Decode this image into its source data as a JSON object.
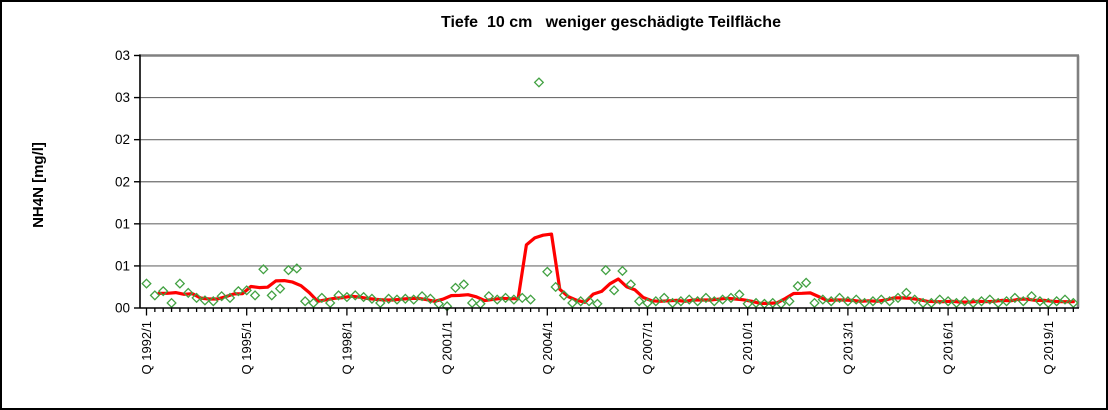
{
  "window": {
    "background_color": "#FFFFFF",
    "border_color": "#000000"
  },
  "chart_data": {
    "type": "scatter",
    "title": "Tiefe  10 cm   weniger geschädigte Teilfläche",
    "ylabel": "NH4N [mg/l]",
    "xlabel": "",
    "ylim": [
      0,
      0.3
    ],
    "grid": "horizontal",
    "legend": "none",
    "y_ticks": [
      {
        "value": 0.3,
        "label": "03"
      },
      {
        "value": 0.25,
        "label": "03"
      },
      {
        "value": 0.2,
        "label": "02"
      },
      {
        "value": 0.15,
        "label": "02"
      },
      {
        "value": 0.1,
        "label": "01"
      },
      {
        "value": 0.05,
        "label": "01"
      },
      {
        "value": 0.0,
        "label": "00"
      }
    ],
    "x_start_quarter": "Q 1992/1",
    "x_frequency": "quarterly",
    "x_label_every_n_quarters": 12,
    "x_tick_labels": [
      "Q 1992/1",
      "Q 1995/1",
      "Q 1998/1",
      "Q 2001/1",
      "Q 2004/1",
      "Q 2007/1",
      "Q 2010/1",
      "Q 2013/1",
      "Q 2016/1",
      "Q 2019/1"
    ],
    "marker": {
      "shape": "diamond-open",
      "color": "#42A142"
    },
    "trend": {
      "kind": "moving_average",
      "window": 4,
      "color": "#FF0000"
    },
    "values": [
      0.029,
      0.015,
      0.02,
      0.006,
      0.029,
      0.018,
      0.012,
      0.009,
      0.008,
      0.014,
      0.012,
      0.02,
      0.021,
      0.015,
      0.046,
      0.015,
      0.023,
      0.045,
      0.047,
      0.008,
      0.006,
      0.012,
      0.006,
      0.015,
      0.013,
      0.015,
      0.013,
      0.011,
      0.006,
      0.011,
      0.01,
      0.011,
      0.01,
      0.014,
      0.011,
      0.005,
      0.002,
      0.024,
      0.028,
      0.006,
      0.005,
      0.014,
      0.01,
      0.012,
      0.01,
      0.012,
      0.01,
      0.268,
      0.043,
      0.025,
      0.015,
      0.006,
      0.008,
      0.008,
      0.005,
      0.045,
      0.021,
      0.044,
      0.028,
      0.008,
      0.006,
      0.008,
      0.012,
      0.006,
      0.008,
      0.01,
      0.008,
      0.012,
      0.008,
      0.01,
      0.012,
      0.016,
      0.005,
      0.006,
      0.005,
      0.006,
      0.005,
      0.008,
      0.026,
      0.03,
      0.006,
      0.01,
      0.008,
      0.012,
      0.008,
      0.01,
      0.006,
      0.008,
      0.01,
      0.008,
      0.012,
      0.018,
      0.01,
      0.006,
      0.006,
      0.01,
      0.008,
      0.006,
      0.008,
      0.006,
      0.008,
      0.01,
      0.006,
      0.008,
      0.012,
      0.008,
      0.014,
      0.008,
      0.006,
      0.008,
      0.01,
      0.006
    ],
    "colors": {
      "axis": "#000000",
      "gridline": "#6E6E6E",
      "plot_border": "#808080"
    }
  }
}
